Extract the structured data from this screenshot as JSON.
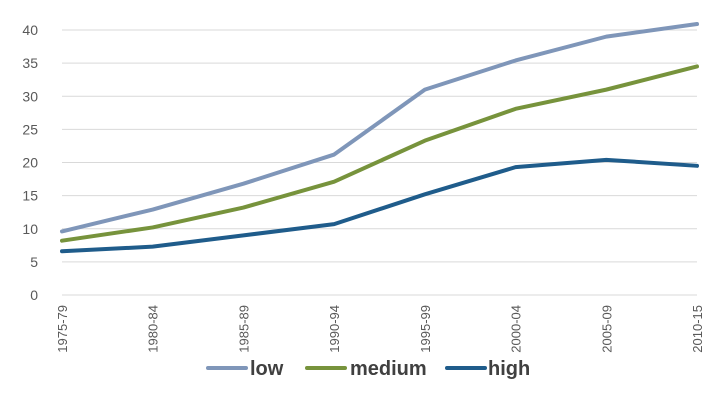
{
  "chart_data": {
    "type": "line",
    "title": "",
    "xlabel": "",
    "ylabel": "",
    "categories": [
      "1975-79",
      "1980-84",
      "1985-89",
      "1990-94",
      "1995-99",
      "2000-04",
      "2005-09",
      "2010-15"
    ],
    "ylim": [
      0,
      40
    ],
    "yticks": [
      "0",
      "5",
      "10",
      "15",
      "20",
      "25",
      "30",
      "35",
      "40"
    ],
    "grid": true,
    "legend_position": "bottom",
    "series": [
      {
        "name": "low",
        "color": "#7f96b9",
        "values": [
          9.6,
          12.9,
          16.8,
          21.2,
          31.0,
          35.4,
          39.0,
          40.9
        ]
      },
      {
        "name": "medium",
        "color": "#77933c",
        "values": [
          8.2,
          10.2,
          13.2,
          17.1,
          23.3,
          28.1,
          31.0,
          34.5
        ]
      },
      {
        "name": "high",
        "color": "#1f5c8b",
        "values": [
          6.6,
          7.3,
          9.0,
          10.7,
          15.2,
          19.3,
          20.4,
          19.5
        ]
      }
    ]
  }
}
